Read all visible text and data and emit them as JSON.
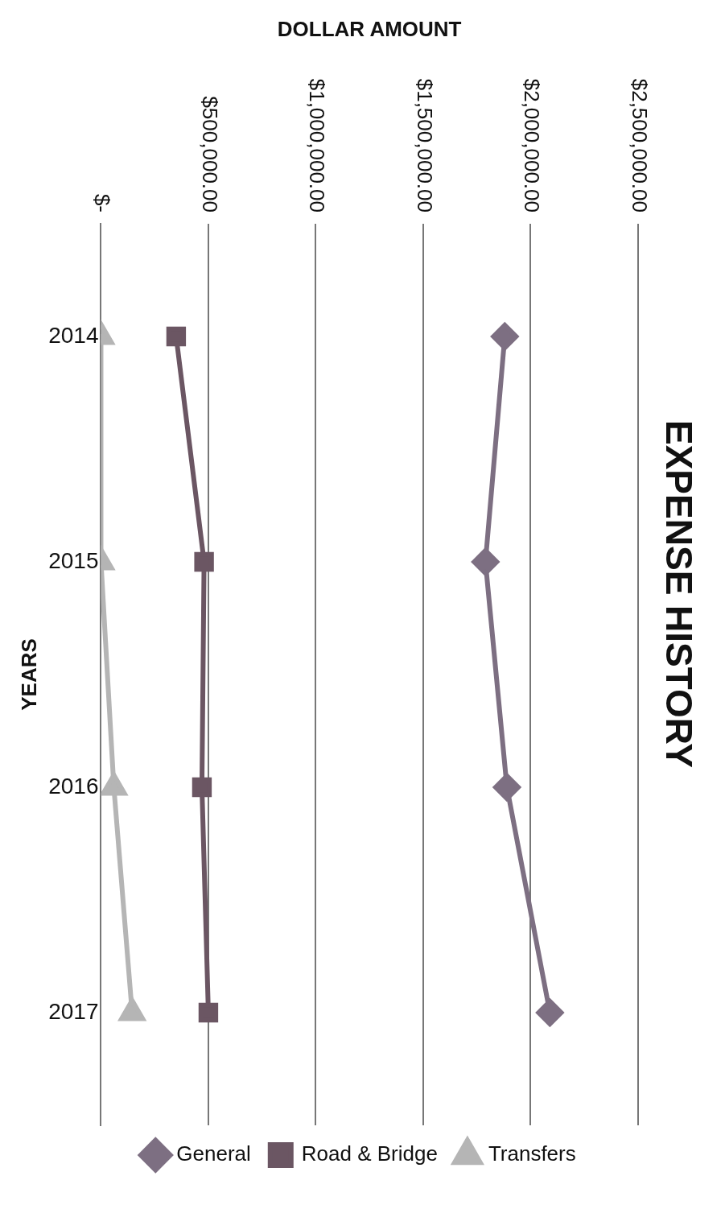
{
  "chart_data": {
    "type": "line",
    "orientation": "horizontal",
    "title": "EXPENSE HISTORY",
    "xlabel": "DOLLAR AMOUNT",
    "ylabel": "YEARS",
    "categories": [
      "2014",
      "2015",
      "2016",
      "2017"
    ],
    "series": [
      {
        "name": "General",
        "color": "#7d6f82",
        "marker": "diamond",
        "values": [
          1880000,
          1790000,
          1890000,
          2090000
        ]
      },
      {
        "name": "Road & Bridge",
        "color": "#6b5663",
        "marker": "square",
        "values": [
          350000,
          480000,
          470000,
          500000
        ]
      },
      {
        "name": "Transfers",
        "color": "#b5b5b5",
        "marker": "triangle",
        "values": [
          0,
          0,
          60000,
          145000
        ]
      }
    ],
    "xlim": [
      0,
      2500000
    ],
    "xticks": [
      {
        "value": 0,
        "label": "$-"
      },
      {
        "value": 500000,
        "label": "$500,000.00"
      },
      {
        "value": 1000000,
        "label": "$1,000,000.00"
      },
      {
        "value": 1500000,
        "label": "$1,500,000.00"
      },
      {
        "value": 2000000,
        "label": "$2,000,000.00"
      },
      {
        "value": 2500000,
        "label": "$2,500,000.00"
      }
    ],
    "grid": "x",
    "legend": "bottom"
  }
}
